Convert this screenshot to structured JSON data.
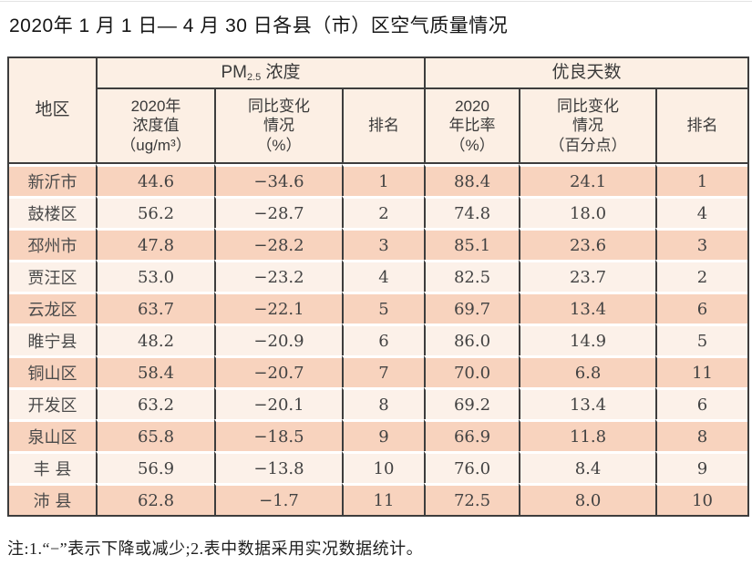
{
  "page": {
    "title": "2020年 1 月 1 日— 4 月 30 日各县（市）区空气质量情况",
    "note": "注:1.“−”表示下降或减少;2.表中数据采用实况数据统计。"
  },
  "colors": {
    "row_odd_bg": "#f8d3be",
    "row_even_bg": "#fcf1e9",
    "header_bg": "#fcefe4",
    "border_dark": "#3d3d3d",
    "text_dark": "#3a3a3a"
  },
  "table": {
    "header": {
      "region": "地区",
      "pm25_group": {
        "prefix": "PM",
        "sub": "2.5",
        "suffix": " 浓度"
      },
      "days_group": "优良天数",
      "pm_value": {
        "l1": "2020年",
        "l2": "浓度值",
        "l3": "（ug/m³）"
      },
      "pm_change": {
        "l1": "同比变化",
        "l2": "情况",
        "l3": "（%）"
      },
      "pm_rank": "排名",
      "days_ratio": {
        "l1": "2020",
        "l2": "年比率",
        "l3": "（%）"
      },
      "days_change": {
        "l1": "同比变化",
        "l2": "情况",
        "l3": "（百分点）"
      },
      "days_rank": "排名"
    },
    "rows": [
      {
        "region": "新沂市",
        "pm_value": "44.6",
        "pm_change": "−34.6",
        "pm_rank": "1",
        "days_ratio": "88.4",
        "days_change": "24.1",
        "days_rank": "1"
      },
      {
        "region": "鼓楼区",
        "pm_value": "56.2",
        "pm_change": "−28.7",
        "pm_rank": "2",
        "days_ratio": "74.8",
        "days_change": "18.0",
        "days_rank": "4"
      },
      {
        "region": "邳州市",
        "pm_value": "47.8",
        "pm_change": "−28.2",
        "pm_rank": "3",
        "days_ratio": "85.1",
        "days_change": "23.6",
        "days_rank": "3"
      },
      {
        "region": "贾汪区",
        "pm_value": "53.0",
        "pm_change": "−23.2",
        "pm_rank": "4",
        "days_ratio": "82.5",
        "days_change": "23.7",
        "days_rank": "2"
      },
      {
        "region": "云龙区",
        "pm_value": "63.7",
        "pm_change": "−22.1",
        "pm_rank": "5",
        "days_ratio": "69.7",
        "days_change": "13.4",
        "days_rank": "6"
      },
      {
        "region": "睢宁县",
        "pm_value": "48.2",
        "pm_change": "−20.9",
        "pm_rank": "6",
        "days_ratio": "86.0",
        "days_change": "14.9",
        "days_rank": "5"
      },
      {
        "region": "铜山区",
        "pm_value": "58.4",
        "pm_change": "−20.7",
        "pm_rank": "7",
        "days_ratio": "70.0",
        "days_change": "6.8",
        "days_rank": "11"
      },
      {
        "region": "开发区",
        "pm_value": "63.2",
        "pm_change": "−20.1",
        "pm_rank": "8",
        "days_ratio": "69.2",
        "days_change": "13.4",
        "days_rank": "6"
      },
      {
        "region": "泉山区",
        "pm_value": "65.8",
        "pm_change": "−18.5",
        "pm_rank": "9",
        "days_ratio": "66.9",
        "days_change": "11.8",
        "days_rank": "8"
      },
      {
        "region": "丰 县",
        "pm_value": "56.9",
        "pm_change": "−13.8",
        "pm_rank": "10",
        "days_ratio": "76.0",
        "days_change": "8.4",
        "days_rank": "9"
      },
      {
        "region": "沛 县",
        "pm_value": "62.8",
        "pm_change": "−1.7",
        "pm_rank": "11",
        "days_ratio": "72.5",
        "days_change": "8.0",
        "days_rank": "10"
      }
    ]
  }
}
